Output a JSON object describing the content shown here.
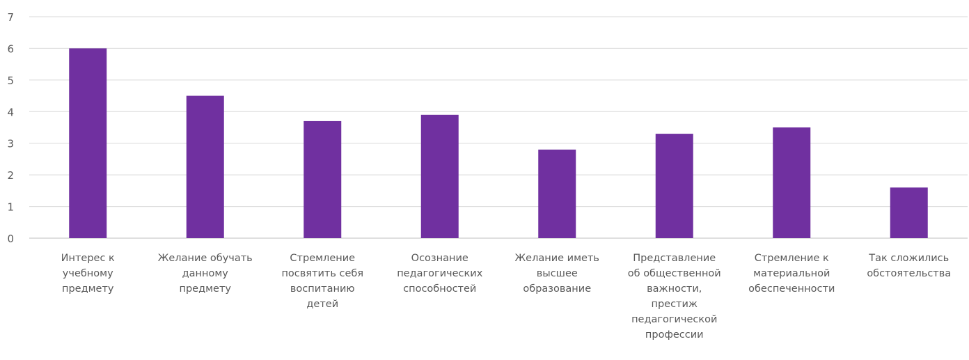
{
  "chart_data": {
    "type": "bar",
    "title": "",
    "xlabel": "",
    "ylabel": "",
    "ylim": [
      0,
      7
    ],
    "yticks": [
      "0",
      "1",
      "2",
      "3",
      "4",
      "5",
      "6",
      "7"
    ],
    "grid": true,
    "legend": "none",
    "bar_color": "#7030a0",
    "categories": [
      "Интерес к учебному предмету",
      "Желание обучать данному предмету",
      "Стремление посвятить себя воспитанию детей",
      "Осознание педагогических способностей",
      "Желание иметь высшее образование",
      "Представление об общественной важности, престиж педагогической профессии",
      "Стремление к материальной обеспеченности",
      "Так сложились обстоятельства"
    ],
    "category_lines": [
      [
        "Интерес к",
        "учебному",
        "предмету"
      ],
      [
        "Желание обучать",
        "данному",
        "предмету"
      ],
      [
        "Стремление",
        "посвятить себя",
        "воспитанию",
        "детей"
      ],
      [
        "Осознание",
        "педагогических",
        "способностей"
      ],
      [
        "Желание иметь",
        "высшее",
        "образование"
      ],
      [
        "Представление",
        "об общественной",
        "важности,",
        "престиж",
        "педагогической",
        "профессии"
      ],
      [
        "Стремление к",
        "материальной",
        "обеспеченности"
      ],
      [
        "Так сложились",
        "обстоятельства"
      ]
    ],
    "values": [
      6.0,
      4.5,
      3.7,
      3.9,
      2.8,
      3.3,
      3.5,
      1.6
    ]
  }
}
